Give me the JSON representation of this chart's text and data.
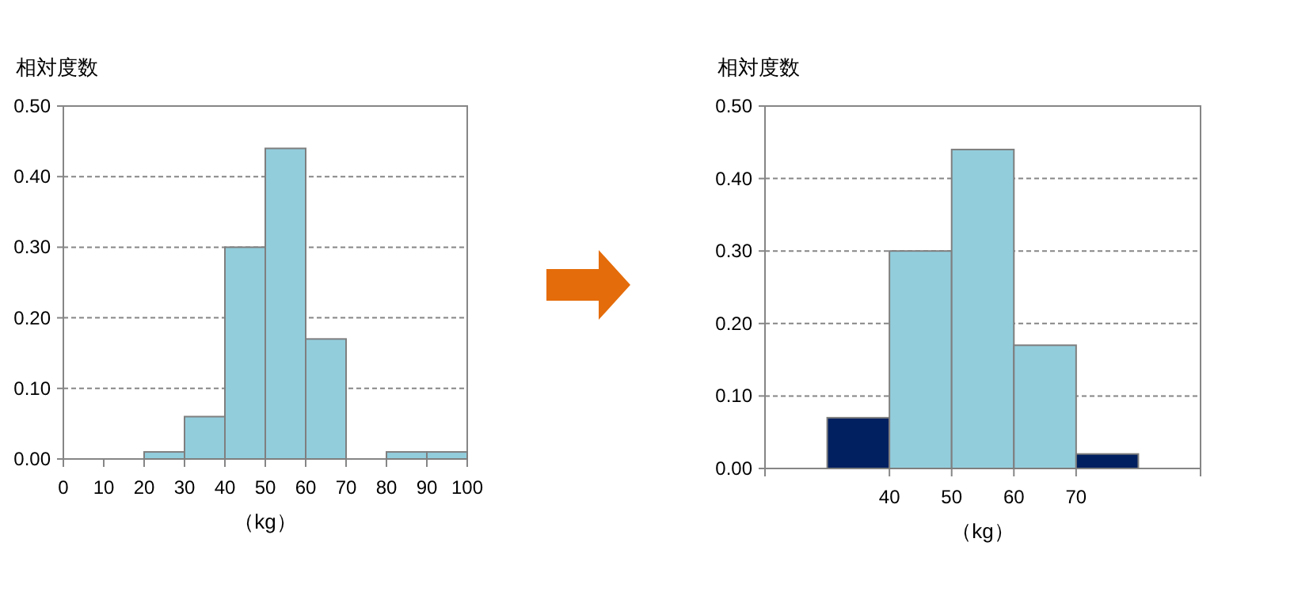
{
  "chart_data": [
    {
      "type": "histogram",
      "ylabel": "相対度数",
      "xlabel": "（kg）",
      "bins": [
        0,
        10,
        20,
        30,
        40,
        50,
        60,
        70,
        80,
        90,
        100
      ],
      "values": [
        0,
        0,
        0.01,
        0.06,
        0.3,
        0.44,
        0.17,
        0,
        0.01,
        0.01
      ],
      "color": "#92cddc",
      "xlim": [
        0,
        100
      ],
      "xticks": [
        0,
        10,
        20,
        30,
        40,
        50,
        60,
        70,
        80,
        90,
        100
      ],
      "ylim": [
        0,
        0.5
      ],
      "yticks": [
        {
          "value": 0,
          "label": "0.00"
        },
        {
          "value": 0.1,
          "label": "0.10"
        },
        {
          "value": 0.2,
          "label": "0.20"
        },
        {
          "value": 0.3,
          "label": "0.30"
        },
        {
          "value": 0.4,
          "label": "0.40"
        },
        {
          "value": 0.5,
          "label": "0.50"
        }
      ],
      "grid": "y"
    },
    {
      "type": "histogram",
      "ylabel": "相対度数",
      "xlabel": "（kg）",
      "bins": [
        30,
        40,
        50,
        60,
        70,
        80
      ],
      "values": [
        0.07,
        0.3,
        0.44,
        0.17,
        0.02
      ],
      "colors": [
        "#002060",
        "#92cddc",
        "#92cddc",
        "#92cddc",
        "#002060"
      ],
      "xlim": [
        20,
        90
      ],
      "xticks": [
        {
          "value": 20,
          "label": null
        },
        40,
        50,
        60,
        70,
        {
          "value": 90,
          "label": null
        }
      ],
      "ylim": [
        0,
        0.5
      ],
      "yticks": [
        {
          "value": 0,
          "label": "0.00"
        },
        {
          "value": 0.1,
          "label": "0.10"
        },
        {
          "value": 0.2,
          "label": "0.20"
        },
        {
          "value": 0.3,
          "label": "0.30"
        },
        {
          "value": 0.4,
          "label": "0.40"
        },
        {
          "value": 0.5,
          "label": "0.50"
        }
      ],
      "grid": "y"
    }
  ]
}
